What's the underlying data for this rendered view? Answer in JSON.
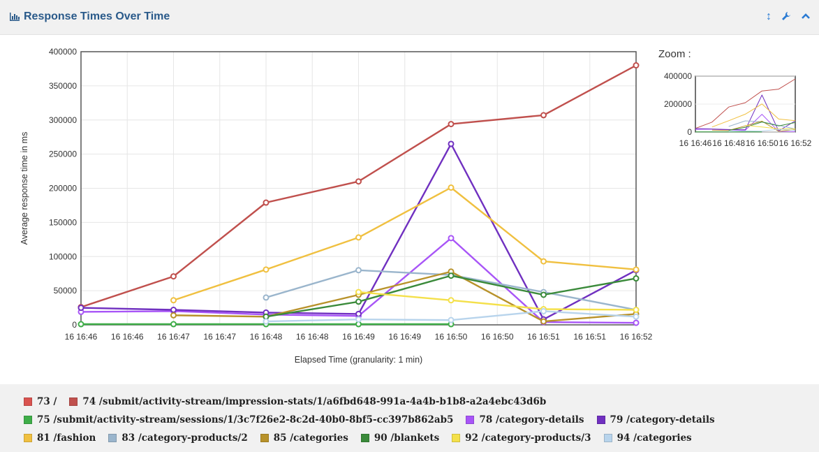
{
  "header": {
    "title": "Response Times Over Time",
    "tools": [
      {
        "name": "resize-icon",
        "glyph": "↕"
      },
      {
        "name": "wrench-icon",
        "glyph": "🔧"
      },
      {
        "name": "chevron-up-icon",
        "glyph": "^"
      }
    ]
  },
  "zoom_label": "Zoom :",
  "chart_data": {
    "type": "line",
    "xlabel": "Elapsed Time (granularity: 1 min)",
    "ylabel": "Average response time in ms",
    "ylim": [
      0,
      400000
    ],
    "grid": true,
    "yticks": [
      "0",
      "50000",
      "100000",
      "150000",
      "200000",
      "250000",
      "300000",
      "350000",
      "400000"
    ],
    "xticks": [
      "16 16:46",
      "16 16:46",
      "16 16:47",
      "16 16:47",
      "16 16:48",
      "16 16:48",
      "16 16:49",
      "16 16:49",
      "16 16:50",
      "16 16:50",
      "16 16:51",
      "16 16:51",
      "16 16:52"
    ],
    "x": [
      "16:46",
      "16:47",
      "16:48",
      "16:49",
      "16:50",
      "16:51",
      "16:52"
    ],
    "series": [
      {
        "name": "73 /",
        "color": "#d9534f",
        "values": [
          null,
          null,
          null,
          null,
          null,
          null,
          null
        ]
      },
      {
        "name": "74 /submit/activity-stream/impression-stats/1/a6fbd648-991a-4a4b-b1b8-a2a4ebc43d6b",
        "color": "#c0504d",
        "values": [
          26000,
          71000,
          179000,
          210000,
          294000,
          307000,
          380000
        ]
      },
      {
        "name": "75 /submit/activity-stream/sessions/1/3c7f26e2-8c2d-40b0-8bf5-cc397b862ab5",
        "color": "#3fae49",
        "values": [
          1000,
          1000,
          1000,
          1000,
          1000,
          null,
          null
        ]
      },
      {
        "name": "78 /category-details",
        "color": "#a855f7",
        "values": [
          19000,
          20000,
          15000,
          13000,
          127000,
          4000,
          3000
        ]
      },
      {
        "name": "79 /category-details",
        "color": "#7030c0",
        "values": [
          25000,
          22000,
          18000,
          16000,
          265000,
          8000,
          80000
        ]
      },
      {
        "name": "81 /fashion",
        "color": "#f0c040",
        "values": [
          null,
          36000,
          81000,
          128000,
          201000,
          93000,
          81000
        ]
      },
      {
        "name": "83 /category-products/2",
        "color": "#9ab5cc",
        "values": [
          null,
          null,
          40000,
          80000,
          73000,
          48000,
          22000
        ]
      },
      {
        "name": "85 /categories",
        "color": "#b8922a",
        "values": [
          null,
          14000,
          12000,
          44000,
          78000,
          5000,
          16000
        ]
      },
      {
        "name": "90 /blankets",
        "color": "#3a8a3a",
        "values": [
          null,
          null,
          12000,
          34000,
          72000,
          44000,
          68000
        ]
      },
      {
        "name": "92 /category-products/3",
        "color": "#f4e04a",
        "values": [
          null,
          null,
          null,
          48000,
          36000,
          23000,
          22000
        ]
      },
      {
        "name": "94 /categories",
        "color": "#b8d4ec",
        "values": [
          null,
          null,
          5000,
          8000,
          7000,
          20000,
          12000
        ]
      }
    ]
  },
  "zoom_data": {
    "yticks": [
      "0",
      "200000",
      "400000"
    ],
    "xticks": [
      "16 16:46",
      "16 16:48",
      "16 16:50",
      "16 16:52"
    ]
  },
  "legend_rows": [
    [
      0,
      1
    ],
    [
      2,
      3,
      4
    ],
    [
      5,
      6,
      7,
      8,
      9,
      10
    ]
  ]
}
